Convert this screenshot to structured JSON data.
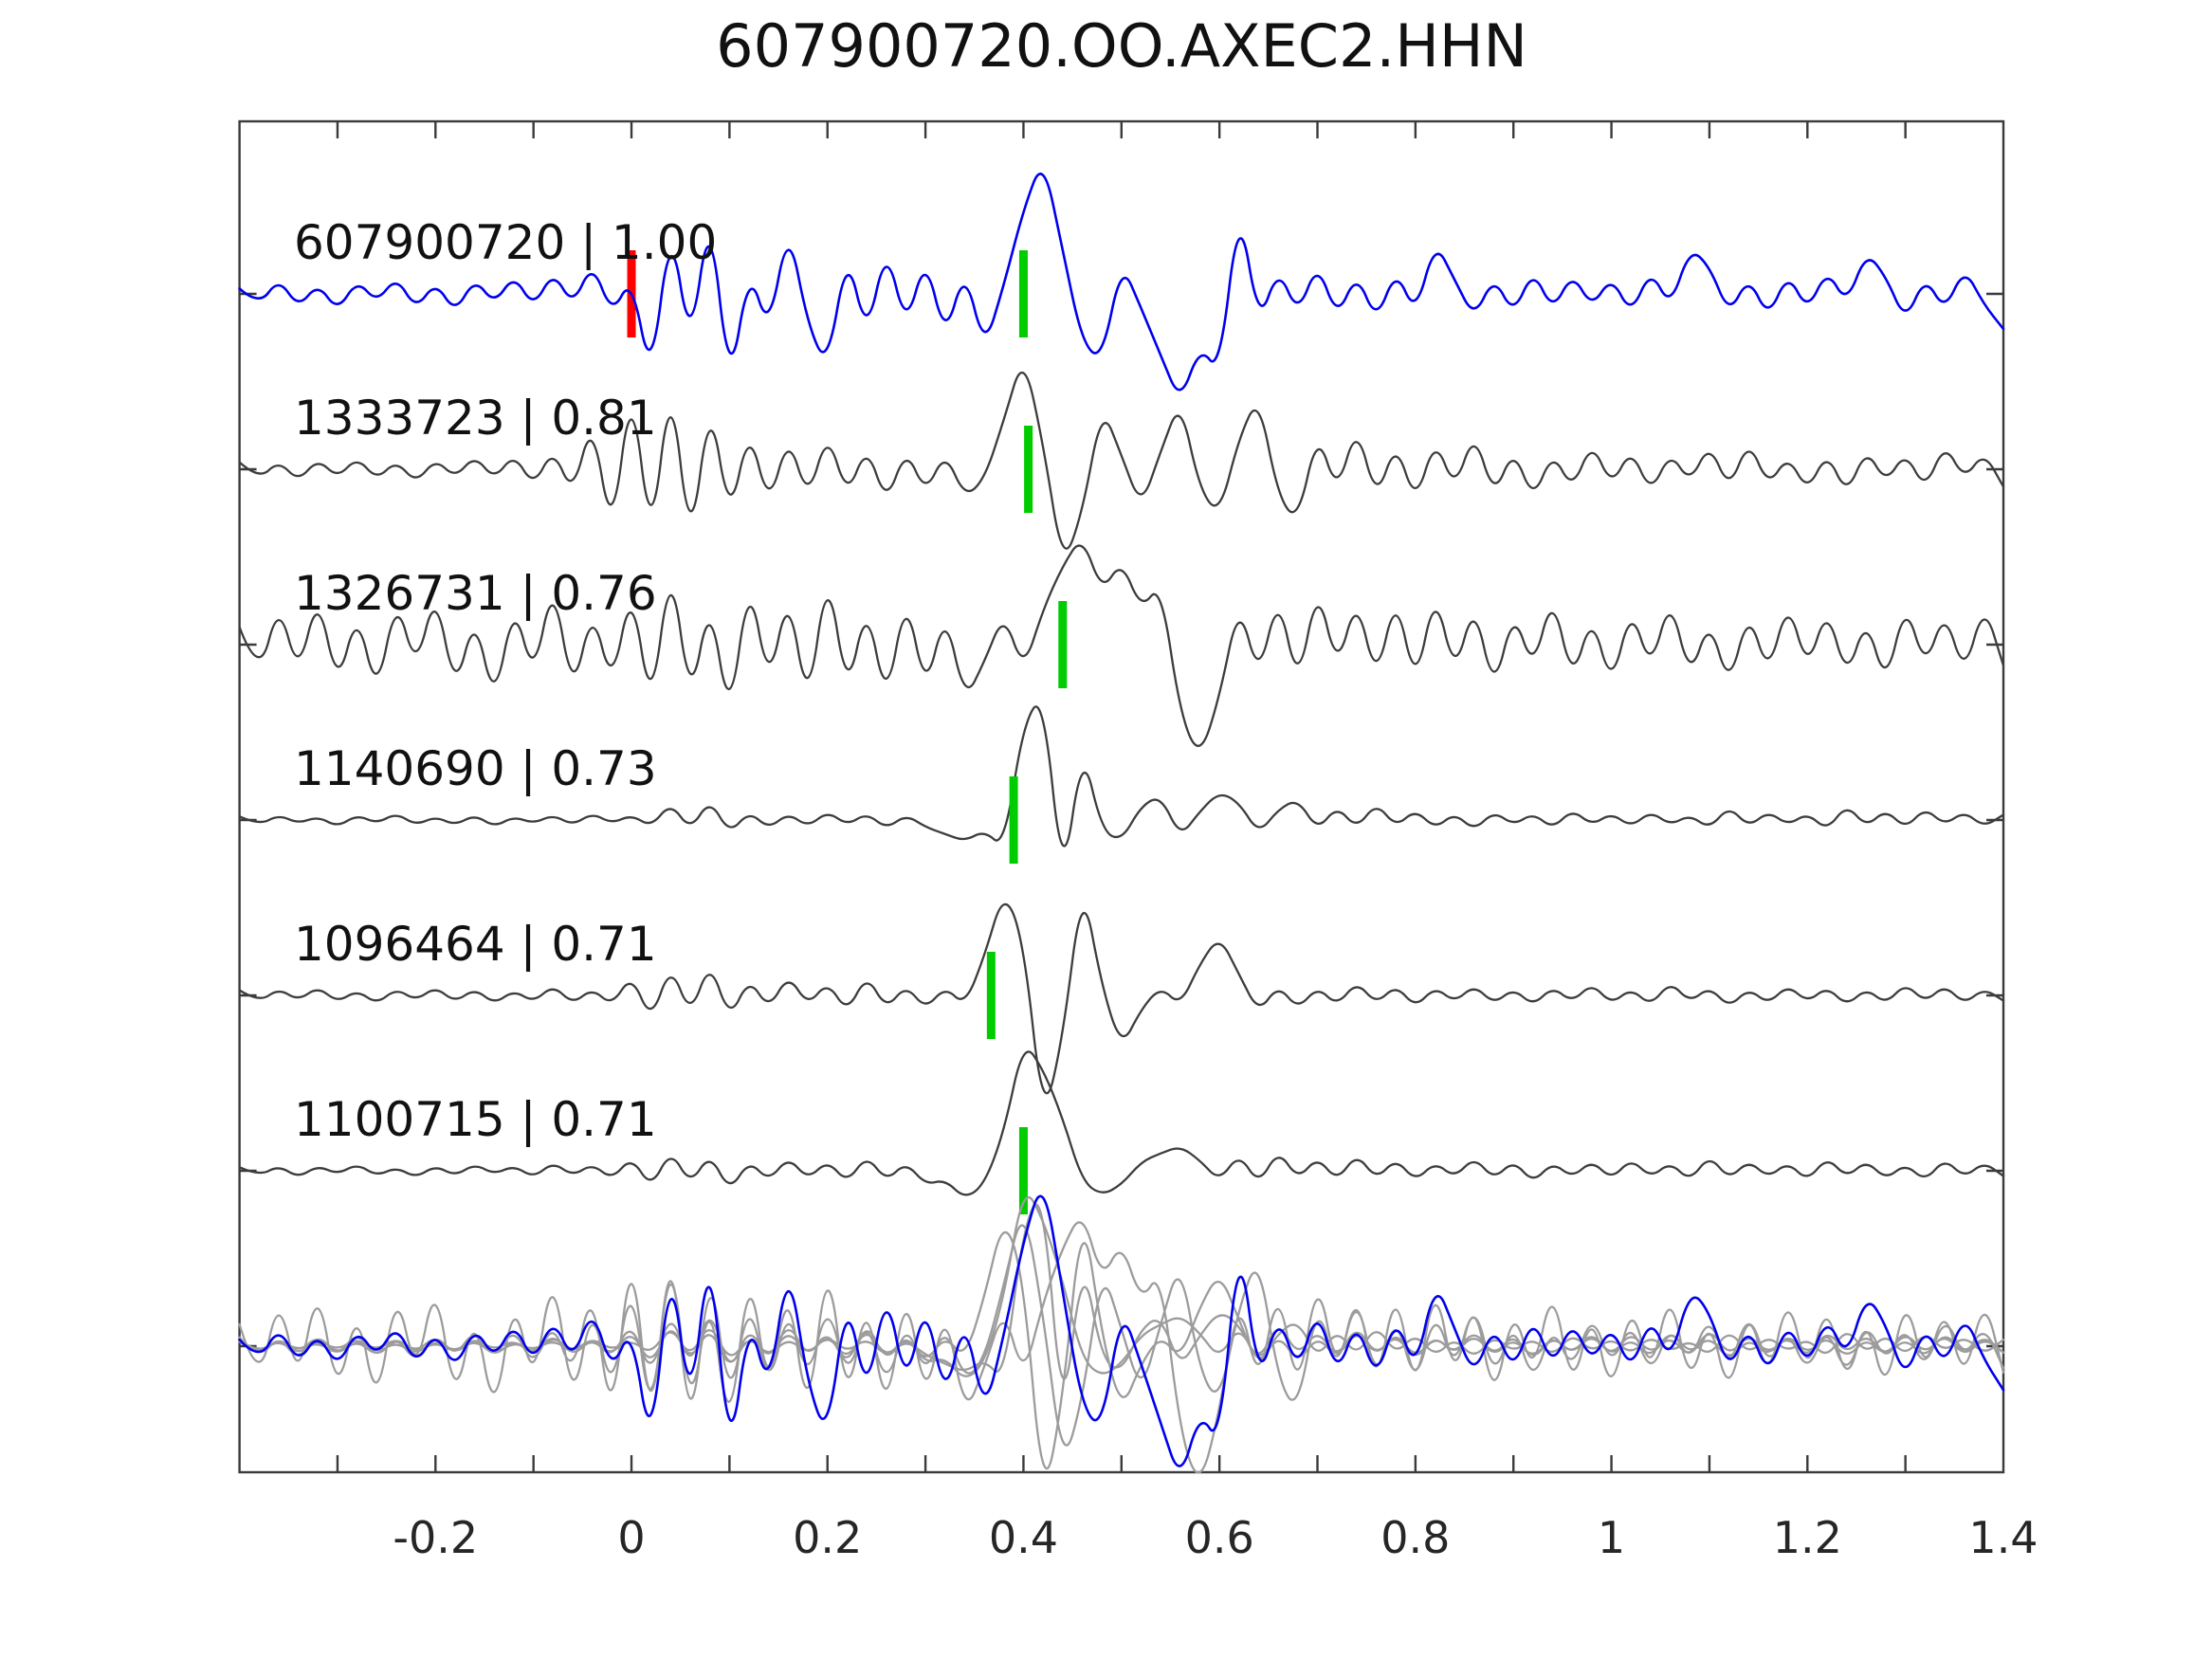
{
  "title": "607900720.OO.AXEC2.HHN",
  "colors": {
    "background": "#ffffff",
    "axis": "#3a3a3a",
    "tick_label": "#262626",
    "trace_label": "#111111",
    "template_trace": "#0000ee",
    "detection_trace": "#3d3d3d",
    "overlay_gray": "#9c9c9c",
    "pick_green": "#00cc00",
    "pick_red": "#ff0000"
  },
  "chart_data": {
    "type": "line",
    "title": "607900720.OO.AXEC2.HHN",
    "xlabel": "",
    "ylabel": "",
    "xlim": [
      -0.4,
      1.4
    ],
    "x_start": -0.4,
    "x_step": 0.02,
    "x_major_ticks": [
      -0.2,
      0,
      0.2,
      0.4,
      0.6,
      0.8,
      1,
      1.2,
      1.4
    ],
    "x_major_tick_labels": [
      "-0.2",
      "0",
      "0.2",
      "0.4",
      "0.6",
      "0.8",
      "1",
      "1.2",
      "1.4"
    ],
    "x_minor_tick_step": 0.1,
    "grid": false,
    "legend": false,
    "amplitude_units": "fraction of row spacing, positive = up",
    "series": [
      {
        "id": "607900720",
        "label": "607900720 | 1.00",
        "correlation": 1.0,
        "role": "template",
        "color": "#0000ee",
        "row": 0,
        "picks": [
          {
            "time": 0.0,
            "color": "#ff0000",
            "type": "template-pick"
          },
          {
            "time": 0.4,
            "color": "#00cc00",
            "type": "detection-pick"
          }
        ],
        "values": [
          0.03,
          -0.07,
          0.09,
          -0.08,
          0.06,
          -0.1,
          0.08,
          -0.05,
          0.1,
          -0.09,
          0.07,
          -0.11,
          0.09,
          -0.06,
          0.11,
          -0.08,
          0.13,
          -0.07,
          0.18,
          -0.12,
          0.1,
          -0.5,
          0.42,
          -0.32,
          0.5,
          -0.55,
          0.15,
          -0.22,
          0.4,
          -0.18,
          -0.42,
          0.25,
          -0.25,
          0.28,
          -0.2,
          0.22,
          -0.26,
          0.15,
          -0.32,
          0.05,
          0.48,
          0.78,
          0.25,
          -0.28,
          -0.38,
          0.18,
          -0.08,
          -0.35,
          -0.62,
          -0.3,
          -0.45,
          0.52,
          -0.18,
          0.15,
          -0.12,
          0.18,
          -0.14,
          0.12,
          -0.16,
          0.14,
          -0.12,
          0.3,
          0.08,
          -0.14,
          0.1,
          -0.12,
          0.14,
          -0.1,
          0.12,
          -0.08,
          0.1,
          -0.12,
          0.14,
          -0.08,
          0.26,
          0.16,
          -0.12,
          0.1,
          -0.14,
          0.12,
          -0.1,
          0.14,
          -0.06,
          0.24,
          0.1,
          -0.16,
          0.1,
          -0.1,
          0.15,
          -0.06,
          -0.2
        ]
      },
      {
        "id": "1333723",
        "label": "1333723 | 0.81",
        "correlation": 0.81,
        "role": "detection",
        "color": "#3d3d3d",
        "row": 1,
        "picks": [
          {
            "time": 0.405,
            "color": "#00cc00",
            "type": "detection-pick"
          }
        ],
        "values": [
          0.04,
          -0.06,
          0.05,
          -0.07,
          0.06,
          -0.05,
          0.07,
          -0.06,
          0.05,
          -0.08,
          0.06,
          -0.05,
          0.08,
          -0.06,
          0.09,
          -0.1,
          0.12,
          -0.15,
          0.3,
          -0.4,
          0.52,
          -0.45,
          0.55,
          -0.48,
          0.42,
          -0.3,
          0.25,
          -0.22,
          0.2,
          -0.18,
          0.22,
          -0.16,
          0.14,
          -0.2,
          0.12,
          -0.14,
          0.1,
          -0.16,
          -0.06,
          0.28,
          0.66,
          0.15,
          -0.56,
          -0.25,
          0.36,
          0.08,
          -0.22,
          0.1,
          0.4,
          -0.12,
          -0.26,
          0.18,
          0.42,
          -0.16,
          -0.3,
          0.22,
          -0.14,
          0.26,
          -0.18,
          0.16,
          -0.2,
          0.18,
          -0.12,
          0.22,
          -0.16,
          0.12,
          -0.18,
          0.1,
          -0.12,
          0.16,
          -0.1,
          0.12,
          -0.14,
          0.1,
          -0.08,
          0.15,
          -0.12,
          0.17,
          -0.1,
          0.08,
          -0.13,
          0.1,
          -0.15,
          0.12,
          -0.08,
          0.1,
          -0.12,
          0.15,
          -0.06,
          0.1,
          -0.1
        ]
      },
      {
        "id": "1326731",
        "label": "1326731 | 0.76",
        "correlation": 0.76,
        "role": "detection",
        "color": "#3d3d3d",
        "row": 2,
        "picks": [
          {
            "time": 0.44,
            "color": "#00cc00",
            "type": "detection-pick"
          }
        ],
        "values": [
          0.1,
          -0.2,
          0.25,
          -0.18,
          0.3,
          -0.25,
          0.2,
          -0.3,
          0.28,
          -0.15,
          0.32,
          -0.28,
          0.18,
          -0.35,
          0.25,
          -0.2,
          0.38,
          -0.3,
          0.22,
          -0.25,
          0.35,
          -0.4,
          0.5,
          -0.35,
          0.28,
          -0.45,
          0.4,
          -0.25,
          0.32,
          -0.38,
          0.45,
          -0.3,
          0.25,
          -0.35,
          0.3,
          -0.28,
          0.2,
          -0.32,
          -0.1,
          0.18,
          -0.15,
          0.2,
          0.45,
          0.62,
          0.3,
          0.48,
          0.2,
          0.35,
          -0.4,
          -0.65,
          -0.3,
          0.25,
          -0.2,
          0.3,
          -0.25,
          0.35,
          -0.15,
          0.28,
          -0.22,
          0.3,
          -0.25,
          0.32,
          -0.18,
          0.25,
          -0.28,
          0.2,
          -0.15,
          0.3,
          -0.22,
          0.18,
          -0.25,
          0.22,
          -0.15,
          0.28,
          -0.2,
          0.15,
          -0.25,
          0.2,
          -0.18,
          0.26,
          -0.15,
          0.22,
          -0.2,
          0.16,
          -0.24,
          0.25,
          -0.14,
          0.2,
          -0.18,
          0.24,
          -0.12
        ]
      },
      {
        "id": "1140690",
        "label": "1140690 | 0.73",
        "correlation": 0.73,
        "role": "detection",
        "color": "#3d3d3d",
        "row": 3,
        "picks": [
          {
            "time": 0.39,
            "color": "#00cc00",
            "type": "detection-pick"
          }
        ],
        "values": [
          0.02,
          -0.03,
          0.03,
          -0.02,
          0.02,
          -0.04,
          0.03,
          -0.02,
          0.04,
          -0.03,
          0.02,
          -0.03,
          0.03,
          -0.04,
          0.02,
          -0.02,
          0.03,
          -0.03,
          0.04,
          -0.02,
          0.03,
          -0.04,
          0.1,
          -0.06,
          0.12,
          -0.08,
          0.05,
          -0.05,
          0.04,
          -0.04,
          0.05,
          -0.03,
          0.04,
          -0.05,
          0.03,
          -0.04,
          -0.08,
          -0.12,
          -0.06,
          -0.16,
          0.55,
          0.72,
          -0.38,
          0.42,
          -0.06,
          -0.12,
          0.08,
          0.14,
          -0.1,
          0.05,
          0.16,
          0.1,
          -0.08,
          0.06,
          0.12,
          -0.06,
          0.08,
          -0.05,
          0.1,
          -0.04,
          0.06,
          -0.05,
          0.04,
          -0.06,
          0.05,
          -0.03,
          0.04,
          -0.05,
          0.06,
          -0.03,
          0.04,
          -0.04,
          0.05,
          -0.03,
          0.03,
          -0.05,
          0.08,
          -0.04,
          0.05,
          -0.03,
          0.04,
          -0.06,
          0.09,
          -0.04,
          0.06,
          -0.05,
          0.07,
          -0.03,
          0.05,
          -0.04,
          0.03
        ]
      },
      {
        "id": "1096464",
        "label": "1096464 | 0.71",
        "correlation": 0.71,
        "role": "detection",
        "color": "#3d3d3d",
        "row": 4,
        "picks": [
          {
            "time": 0.367,
            "color": "#00cc00",
            "type": "detection-pick"
          }
        ],
        "values": [
          0.03,
          -0.04,
          0.04,
          -0.03,
          0.05,
          -0.04,
          0.03,
          -0.05,
          0.04,
          -0.03,
          0.05,
          -0.04,
          0.04,
          -0.05,
          0.03,
          -0.04,
          0.06,
          -0.05,
          0.04,
          -0.06,
          0.12,
          -0.15,
          0.18,
          -0.12,
          0.2,
          -0.14,
          0.1,
          -0.08,
          0.12,
          -0.06,
          0.08,
          -0.1,
          0.12,
          -0.08,
          0.06,
          -0.08,
          0.05,
          -0.06,
          0.22,
          0.6,
          0.32,
          -0.72,
          -0.25,
          0.65,
          0.05,
          -0.3,
          -0.08,
          0.05,
          -0.06,
          0.18,
          0.34,
          0.12,
          -0.1,
          0.06,
          -0.08,
          0.05,
          -0.06,
          0.08,
          -0.05,
          0.06,
          -0.07,
          0.05,
          -0.04,
          0.06,
          -0.05,
          0.04,
          -0.06,
          0.05,
          -0.04,
          0.07,
          -0.05,
          0.04,
          -0.06,
          0.08,
          -0.04,
          0.05,
          -0.07,
          0.04,
          -0.05,
          0.06,
          -0.04,
          0.05,
          -0.06,
          0.04,
          -0.05,
          0.07,
          -0.04,
          0.06,
          -0.05,
          0.04,
          -0.03
        ]
      },
      {
        "id": "1100715",
        "label": "1100715 | 0.71",
        "correlation": 0.71,
        "role": "detection",
        "color": "#3d3d3d",
        "row": 5,
        "picks": [
          {
            "time": 0.4,
            "color": "#00cc00",
            "type": "detection-pick"
          }
        ],
        "values": [
          0.02,
          -0.03,
          0.03,
          -0.04,
          0.03,
          -0.02,
          0.04,
          -0.03,
          0.02,
          -0.04,
          0.03,
          -0.03,
          0.04,
          -0.02,
          0.03,
          -0.04,
          0.05,
          -0.03,
          0.04,
          -0.05,
          0.08,
          -0.1,
          0.12,
          -0.08,
          0.1,
          -0.12,
          0.06,
          -0.06,
          0.08,
          -0.05,
          0.06,
          -0.07,
          0.09,
          -0.06,
          0.05,
          -0.08,
          -0.05,
          -0.16,
          -0.08,
          0.22,
          0.74,
          0.58,
          0.3,
          -0.06,
          -0.14,
          -0.08,
          0.05,
          0.1,
          0.14,
          0.06,
          -0.06,
          0.1,
          -0.08,
          0.12,
          -0.05,
          0.08,
          -0.06,
          0.1,
          -0.05,
          0.07,
          -0.06,
          0.05,
          -0.04,
          0.08,
          -0.05,
          0.06,
          -0.07,
          0.05,
          -0.04,
          0.06,
          -0.05,
          0.07,
          -0.04,
          0.05,
          -0.06,
          0.09,
          -0.05,
          0.06,
          -0.04,
          0.05,
          -0.06,
          0.08,
          -0.04,
          0.06,
          -0.05,
          0.04,
          -0.06,
          0.07,
          -0.04,
          0.05,
          -0.03
        ]
      }
    ],
    "overlay": {
      "row": 6,
      "description": "all detections (gray) overlaid with template (blue)",
      "gray_series": [
        "1333723",
        "1326731",
        "1140690",
        "1096464",
        "1100715"
      ],
      "blue_series": "607900720",
      "gray_color": "#9c9c9c",
      "blue_color": "#0000ee",
      "amp_scale": 1.25
    }
  }
}
